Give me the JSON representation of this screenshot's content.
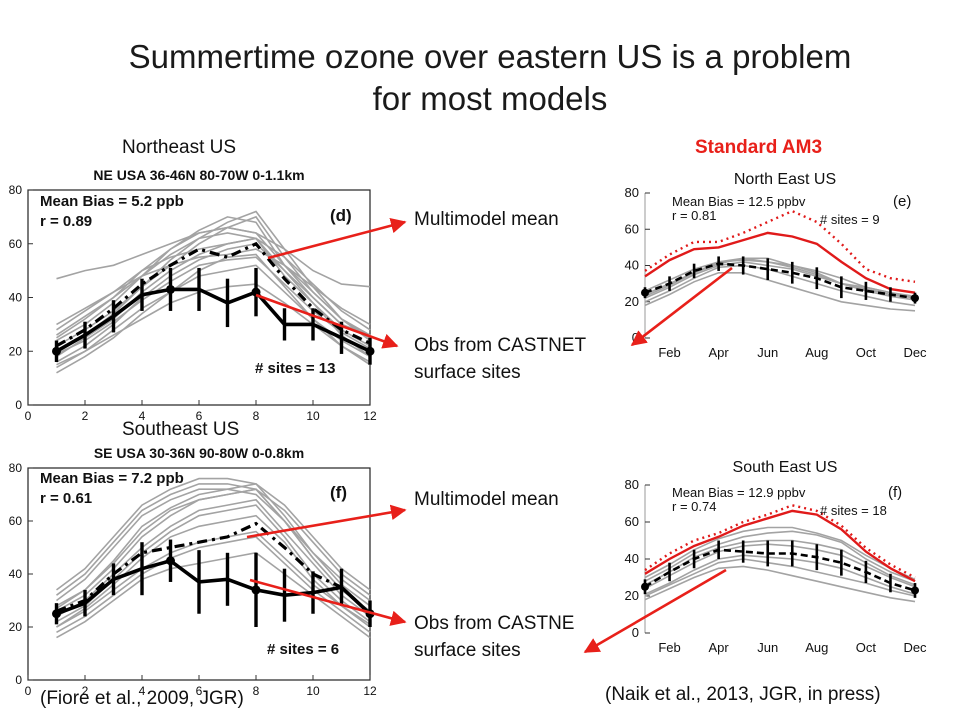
{
  "slide": {
    "title_line1": "Summertime ozone over eastern US is a problem",
    "title_line2": "for most models",
    "label_northeast": "Northeast US",
    "label_southeast": "Southeast US",
    "label_standard": "Standard AM3",
    "citation_left": "(Fiore et al., 2009, JGR)",
    "citation_right": "(Naik et al., 2013, JGR, in press)",
    "annotations": {
      "mm_top": "Multimodel mean",
      "obs_top_line1": "Obs from CASTNET",
      "obs_top_line2": "surface sites",
      "mm_bottom": "Multimodel mean",
      "obs_bottom_line1": "Obs from CASTNE",
      "obs_bottom_line2": "surface sites"
    },
    "arrow_color": "#e8201a"
  },
  "chart_data": [
    {
      "id": "fiore_ne",
      "type": "line",
      "title": "NE USA 36-46N 80-70W 0-1.1km",
      "panel_label": "(d)",
      "stats": [
        "Mean Bias = 5.2 ppb",
        "r = 0.89"
      ],
      "sites_text": "# sites = 13",
      "xlim": [
        0,
        12
      ],
      "ylim": [
        0,
        80
      ],
      "xticks": [
        0,
        2,
        4,
        6,
        8,
        10,
        12
      ],
      "yticks": [
        0,
        20,
        40,
        60,
        80
      ],
      "x": [
        1,
        2,
        3,
        4,
        5,
        6,
        7,
        8,
        9,
        10,
        11,
        12
      ],
      "series": [
        {
          "role": "obs",
          "values": [
            20,
            26,
            33,
            41,
            43,
            43,
            38,
            42,
            30,
            30,
            25,
            20
          ],
          "err": [
            4,
            5,
            6,
            6,
            8,
            8,
            9,
            9,
            6,
            6,
            6,
            5
          ]
        },
        {
          "role": "mean",
          "values": [
            22,
            28,
            36,
            45,
            52,
            58,
            55,
            60,
            47,
            36,
            28,
            23
          ]
        }
      ],
      "models": [
        [
          25,
          32,
          40,
          50,
          58,
          65,
          70,
          68,
          52,
          40,
          30,
          25
        ],
        [
          18,
          25,
          32,
          42,
          50,
          56,
          60,
          62,
          48,
          38,
          28,
          22
        ],
        [
          15,
          20,
          28,
          36,
          42,
          48,
          50,
          52,
          42,
          32,
          24,
          18
        ],
        [
          28,
          35,
          42,
          50,
          55,
          58,
          60,
          62,
          55,
          45,
          35,
          28
        ],
        [
          22,
          28,
          35,
          44,
          52,
          60,
          66,
          70,
          55,
          42,
          32,
          25
        ],
        [
          12,
          18,
          25,
          34,
          42,
          50,
          55,
          56,
          44,
          32,
          22,
          15
        ],
        [
          30,
          36,
          42,
          48,
          52,
          55,
          56,
          58,
          52,
          44,
          36,
          30
        ],
        [
          20,
          26,
          34,
          44,
          54,
          62,
          68,
          72,
          58,
          44,
          32,
          24
        ],
        [
          16,
          22,
          30,
          40,
          48,
          54,
          58,
          60,
          50,
          38,
          26,
          18
        ],
        [
          24,
          30,
          38,
          48,
          58,
          64,
          66,
          64,
          52,
          42,
          32,
          26
        ],
        [
          47,
          50,
          52,
          56,
          60,
          64,
          66,
          64,
          58,
          50,
          45,
          44
        ],
        [
          14,
          20,
          26,
          32,
          38,
          42,
          44,
          45,
          38,
          30,
          22,
          16
        ],
        [
          26,
          33,
          40,
          48,
          56,
          62,
          64,
          62,
          50,
          40,
          30,
          26
        ],
        [
          19,
          24,
          31,
          39,
          46,
          52,
          54,
          55,
          45,
          35,
          27,
          21
        ]
      ]
    },
    {
      "id": "fiore_se",
      "type": "line",
      "title": "SE USA 30-36N 90-80W 0-0.8km",
      "panel_label": "(f)",
      "stats": [
        "Mean Bias = 7.2 ppb",
        "r = 0.61"
      ],
      "sites_text": "# sites = 6",
      "xlim": [
        0,
        12
      ],
      "ylim": [
        0,
        80
      ],
      "xticks": [
        0,
        2,
        4,
        6,
        8,
        10,
        12
      ],
      "yticks": [
        0,
        20,
        40,
        60,
        80
      ],
      "x": [
        1,
        2,
        3,
        4,
        5,
        6,
        7,
        8,
        9,
        10,
        11,
        12
      ],
      "series": [
        {
          "role": "obs",
          "values": [
            25,
            29,
            38,
            42,
            45,
            37,
            38,
            34,
            32,
            33,
            35,
            25
          ],
          "err": [
            4,
            5,
            6,
            10,
            8,
            12,
            10,
            14,
            10,
            8,
            7,
            5
          ]
        },
        {
          "role": "mean",
          "values": [
            26,
            30,
            40,
            48,
            50,
            52,
            54,
            59,
            50,
            40,
            35,
            25
          ]
        }
      ],
      "models": [
        [
          28,
          34,
          45,
          58,
          65,
          70,
          72,
          74,
          62,
          48,
          36,
          28
        ],
        [
          22,
          28,
          38,
          48,
          56,
          62,
          64,
          66,
          54,
          40,
          30,
          22
        ],
        [
          30,
          38,
          50,
          62,
          68,
          72,
          72,
          70,
          60,
          48,
          38,
          30
        ],
        [
          20,
          26,
          34,
          42,
          48,
          52,
          54,
          56,
          46,
          36,
          28,
          20
        ],
        [
          26,
          32,
          42,
          54,
          62,
          68,
          70,
          72,
          60,
          46,
          34,
          26
        ],
        [
          32,
          40,
          52,
          64,
          70,
          74,
          74,
          72,
          64,
          52,
          40,
          32
        ],
        [
          18,
          24,
          32,
          40,
          46,
          50,
          52,
          54,
          44,
          34,
          26,
          18
        ],
        [
          24,
          30,
          40,
          50,
          58,
          64,
          66,
          68,
          56,
          44,
          32,
          24
        ],
        [
          34,
          42,
          54,
          66,
          72,
          76,
          76,
          74,
          66,
          54,
          42,
          34
        ],
        [
          20,
          27,
          36,
          46,
          54,
          58,
          60,
          62,
          52,
          38,
          28,
          21
        ],
        [
          16,
          22,
          30,
          38,
          42,
          44,
          46,
          48,
          40,
          32,
          24,
          16
        ],
        [
          27,
          34,
          44,
          56,
          64,
          68,
          70,
          72,
          60,
          46,
          34,
          26
        ]
      ]
    },
    {
      "id": "naik_ne",
      "type": "line",
      "title": "North East US",
      "panel_label": "(e)",
      "stats": [
        "Mean Bias = 12.5 ppbv",
        "r = 0.81"
      ],
      "sites_text": "# sites = 9",
      "xlim": [
        1,
        12
      ],
      "ylim": [
        0,
        80
      ],
      "xtick_positions": [
        2,
        4,
        6,
        8,
        10,
        12
      ],
      "xtick_labels": [
        "Feb",
        "Apr",
        "Jun",
        "Aug",
        "Oct",
        "Dec"
      ],
      "yticks": [
        0,
        20,
        40,
        60,
        80
      ],
      "x": [
        1,
        2,
        3,
        4,
        5,
        6,
        7,
        8,
        9,
        10,
        11,
        12
      ],
      "series": [
        {
          "role": "obs",
          "values": [
            25,
            30,
            37,
            41,
            40,
            38,
            36,
            33,
            28,
            26,
            24,
            22
          ],
          "err": [
            3,
            4,
            4,
            4,
            5,
            6,
            6,
            6,
            6,
            5,
            4,
            3
          ]
        },
        {
          "role": "am3",
          "values": [
            34,
            43,
            49,
            50,
            54,
            58,
            56,
            52,
            42,
            33,
            27,
            25
          ]
        },
        {
          "role": "am3-dotted",
          "values": [
            37,
            46,
            53,
            53,
            58,
            64,
            70,
            64,
            52,
            38,
            33,
            31
          ]
        }
      ],
      "models": [
        [
          22,
          28,
          35,
          40,
          42,
          40,
          38,
          34,
          30,
          26,
          23,
          21
        ],
        [
          24,
          30,
          36,
          42,
          44,
          44,
          40,
          36,
          30,
          27,
          24,
          22
        ],
        [
          20,
          26,
          33,
          39,
          40,
          38,
          34,
          30,
          26,
          23,
          20,
          18
        ],
        [
          26,
          32,
          38,
          42,
          43,
          42,
          39,
          35,
          30,
          28,
          25,
          23
        ],
        [
          18,
          24,
          31,
          36,
          36,
          32,
          28,
          24,
          20,
          18,
          16,
          15
        ],
        [
          23,
          29,
          36,
          41,
          44,
          42,
          40,
          37,
          33,
          28,
          25,
          22
        ]
      ]
    },
    {
      "id": "naik_se",
      "type": "line",
      "title": "South East US",
      "panel_label": "(f)",
      "stats": [
        "Mean Bias = 12.9 ppbv",
        "r = 0.74"
      ],
      "sites_text": "# sites = 18",
      "xlim": [
        1,
        12
      ],
      "ylim": [
        0,
        80
      ],
      "xtick_positions": [
        2,
        4,
        6,
        8,
        10,
        12
      ],
      "xtick_labels": [
        "Feb",
        "Apr",
        "Jun",
        "Aug",
        "Oct",
        "Dec"
      ],
      "yticks": [
        0,
        20,
        40,
        60,
        80
      ],
      "x": [
        1,
        2,
        3,
        4,
        5,
        6,
        7,
        8,
        9,
        10,
        11,
        12
      ],
      "series": [
        {
          "role": "obs",
          "values": [
            25,
            33,
            40,
            45,
            44,
            43,
            43,
            41,
            38,
            33,
            27,
            23
          ],
          "err": [
            4,
            5,
            5,
            5,
            6,
            7,
            7,
            7,
            7,
            6,
            5,
            4
          ]
        },
        {
          "role": "am3",
          "values": [
            32,
            40,
            47,
            52,
            58,
            62,
            66,
            64,
            56,
            44,
            35,
            28
          ]
        },
        {
          "role": "am3-dotted",
          "values": [
            34,
            43,
            50,
            54,
            60,
            64,
            69,
            66,
            58,
            46,
            37,
            30
          ]
        }
      ],
      "models": [
        [
          24,
          31,
          38,
          44,
          47,
          48,
          47,
          45,
          42,
          36,
          30,
          25
        ],
        [
          28,
          35,
          43,
          48,
          52,
          54,
          55,
          53,
          49,
          40,
          33,
          28
        ],
        [
          21,
          27,
          34,
          40,
          42,
          41,
          40,
          38,
          35,
          30,
          25,
          21
        ],
        [
          30,
          37,
          45,
          51,
          55,
          57,
          57,
          54,
          50,
          42,
          35,
          29
        ],
        [
          20,
          26,
          32,
          38,
          40,
          38,
          36,
          33,
          30,
          27,
          23,
          20
        ],
        [
          26,
          33,
          41,
          46,
          49,
          50,
          50,
          48,
          45,
          38,
          31,
          26
        ],
        [
          18,
          24,
          30,
          35,
          36,
          34,
          31,
          28,
          25,
          22,
          19,
          17
        ]
      ]
    }
  ]
}
